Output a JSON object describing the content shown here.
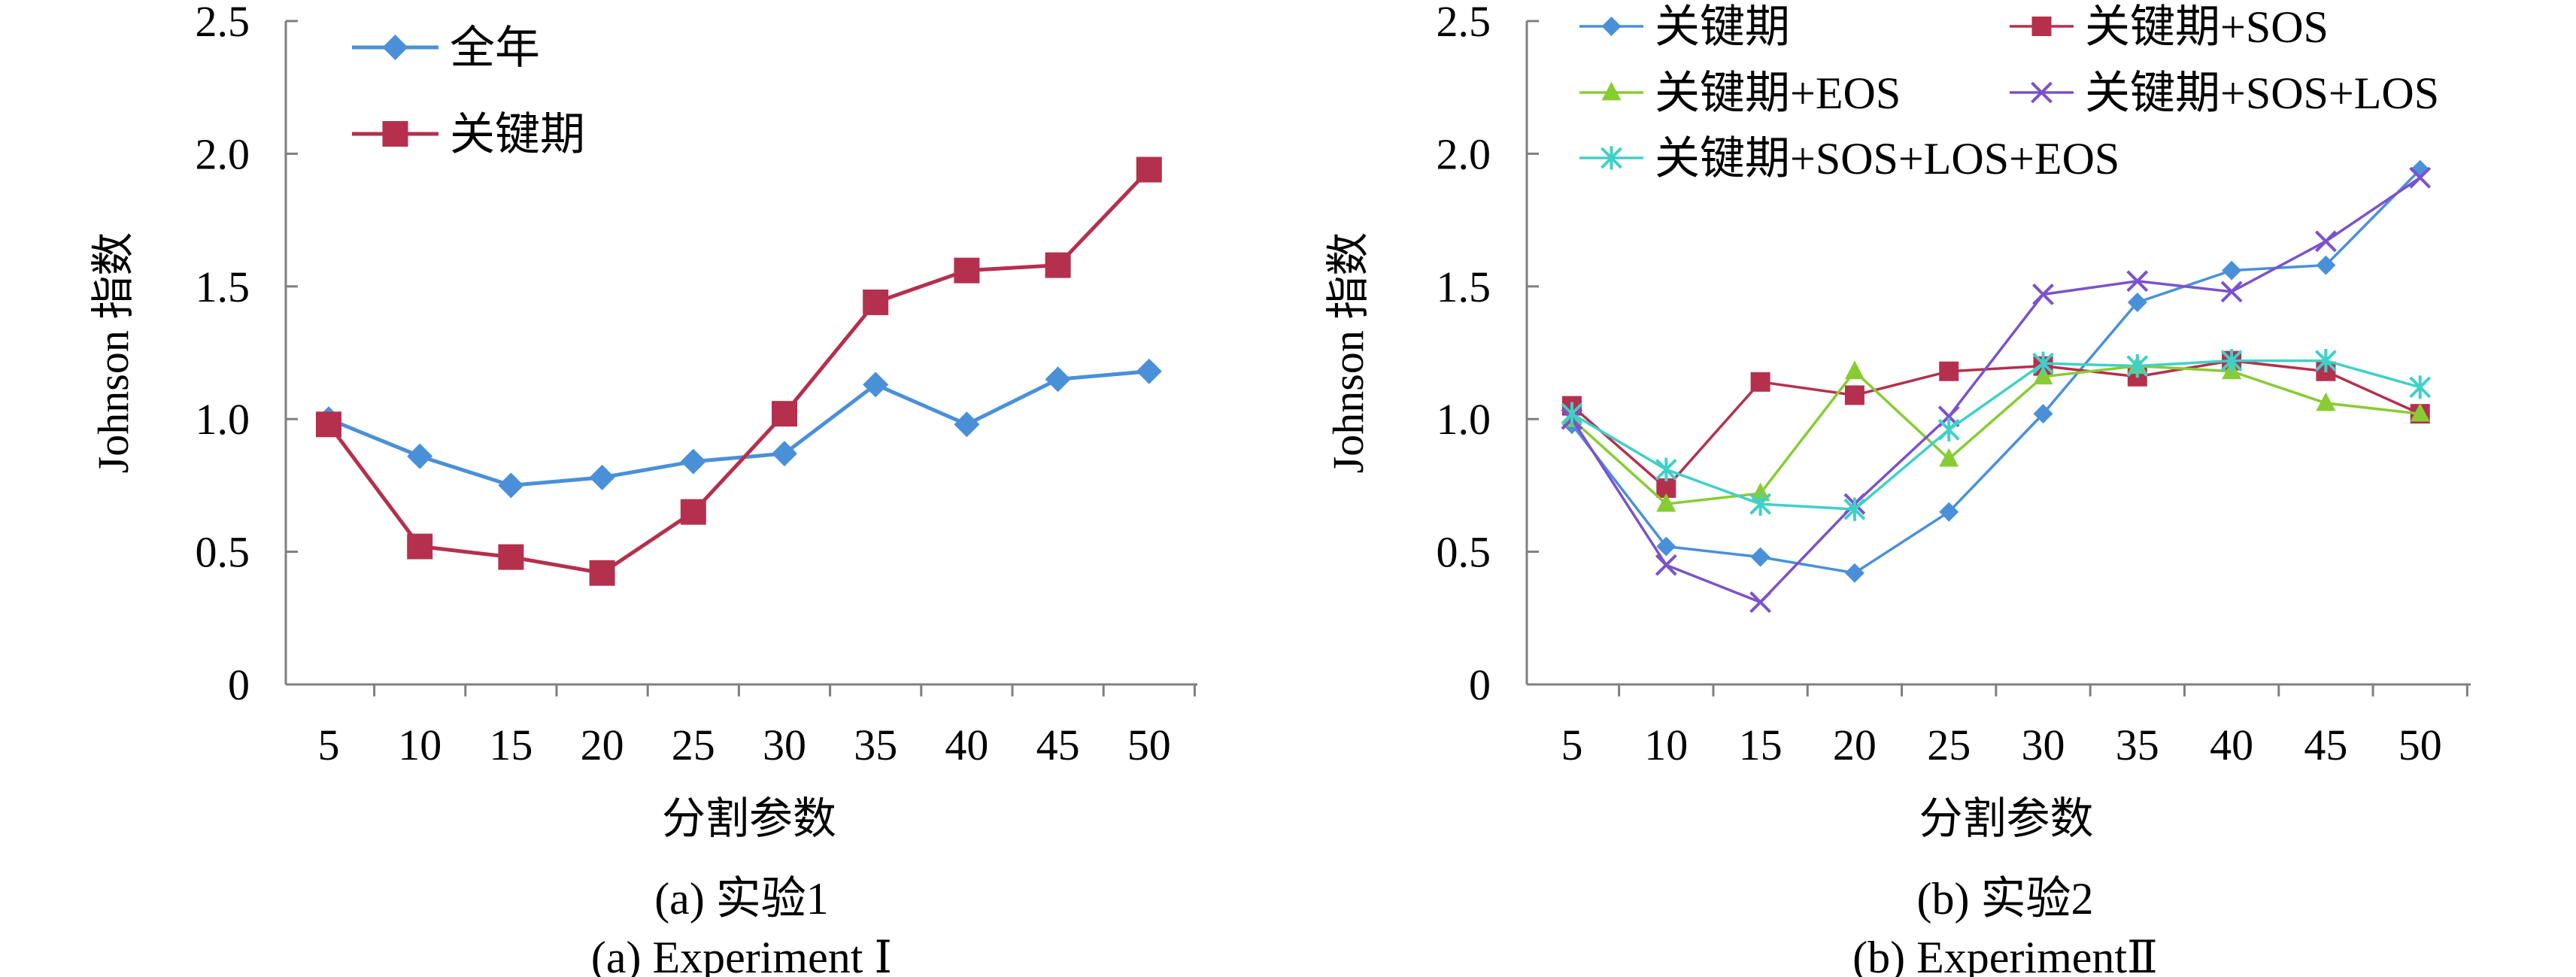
{
  "chart_data": [
    {
      "type": "line",
      "id": "a",
      "ylabel": "Johnson 指数",
      "xlabel": "分割参数",
      "caption_cn": "(a) 实验1",
      "caption_en": "(a) Experiment Ⅰ",
      "categories": [
        "5",
        "10",
        "15",
        "20",
        "25",
        "30",
        "35",
        "40",
        "45",
        "50"
      ],
      "ylim": [
        0,
        2.5
      ],
      "y_ticks": [
        "0",
        "0.5",
        "1.0",
        "1.5",
        "2.0",
        "2.5"
      ],
      "legend": "top-left",
      "series": [
        {
          "name": "全年",
          "color": "#4a90d9",
          "marker": "diamond",
          "values": [
            1.0,
            0.86,
            0.75,
            0.78,
            0.84,
            0.87,
            1.13,
            0.98,
            1.15,
            1.18
          ]
        },
        {
          "name": "关键期",
          "color": "#b5304d",
          "marker": "square",
          "values": [
            0.98,
            0.52,
            0.48,
            0.42,
            0.65,
            1.02,
            1.44,
            1.56,
            1.58,
            1.94
          ]
        }
      ]
    },
    {
      "type": "line",
      "id": "b",
      "ylabel": "Johnson 指数",
      "xlabel": "分割参数",
      "caption_cn": "(b) 实验2",
      "caption_en": "(b) ExperimentⅡ",
      "categories": [
        "5",
        "10",
        "15",
        "20",
        "25",
        "30",
        "35",
        "40",
        "45",
        "50"
      ],
      "ylim": [
        0,
        2.5
      ],
      "y_ticks": [
        "0",
        "0.5",
        "1.0",
        "1.5",
        "2.0",
        "2.5"
      ],
      "legend": "top",
      "series": [
        {
          "name": "关键期",
          "color": "#4a90d9",
          "marker": "diamond",
          "values": [
            0.98,
            0.52,
            0.48,
            0.42,
            0.65,
            1.02,
            1.44,
            1.56,
            1.58,
            1.94
          ]
        },
        {
          "name": "关键期+SOS",
          "color": "#b5304d",
          "marker": "square",
          "values": [
            1.05,
            0.74,
            1.14,
            1.09,
            1.18,
            1.2,
            1.16,
            1.22,
            1.18,
            1.02
          ]
        },
        {
          "name": "关键期+EOS",
          "color": "#88cc33",
          "marker": "triangle",
          "values": [
            1.0,
            0.68,
            0.72,
            1.18,
            0.85,
            1.16,
            1.2,
            1.18,
            1.06,
            1.02
          ]
        },
        {
          "name": "关键期+SOS+LOS",
          "color": "#7b52cc",
          "marker": "x",
          "values": [
            1.0,
            0.45,
            0.31,
            0.68,
            1.01,
            1.47,
            1.52,
            1.48,
            1.67,
            1.91
          ]
        },
        {
          "name": "关键期+SOS+LOS+EOS",
          "color": "#40d0c8",
          "marker": "asterisk",
          "values": [
            1.02,
            0.81,
            0.68,
            0.66,
            0.96,
            1.21,
            1.2,
            1.22,
            1.22,
            1.12
          ]
        }
      ]
    }
  ]
}
